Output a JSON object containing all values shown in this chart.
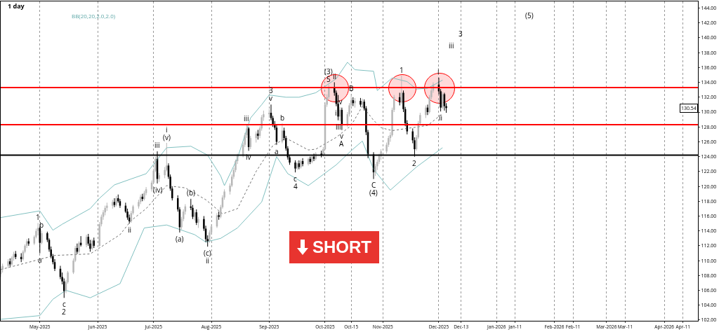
{
  "chart_data": {
    "type": "candlestick",
    "title": "1 day",
    "x": [
      "2025-04-10",
      "2025-04-11",
      "2025-04-14",
      "2025-04-15",
      "2025-04-16",
      "2025-04-17",
      "2025-04-18",
      "2025-04-21",
      "2025-04-22",
      "2025-04-23",
      "2025-04-24",
      "2025-04-25",
      "2025-04-28",
      "2025-04-29",
      "2025-04-30",
      "2025-05-01",
      "2025-05-02",
      "2025-05-05",
      "2025-05-06",
      "2025-05-07",
      "2025-05-08",
      "2025-05-09",
      "2025-05-12",
      "2025-05-13",
      "2025-05-14",
      "2025-05-15",
      "2025-05-16",
      "2025-05-19",
      "2025-05-20",
      "2025-05-21",
      "2025-05-22",
      "2025-05-23",
      "2025-05-26",
      "2025-05-27",
      "2025-05-28",
      "2025-05-29",
      "2025-05-30",
      "2025-06-02",
      "2025-06-03",
      "2025-06-04",
      "2025-06-05",
      "2025-06-06",
      "2025-06-09",
      "2025-06-10",
      "2025-06-11",
      "2025-06-12",
      "2025-06-13",
      "2025-06-16",
      "2025-06-17",
      "2025-06-18",
      "2025-06-19",
      "2025-06-20",
      "2025-06-23",
      "2025-06-24",
      "2025-06-25",
      "2025-06-26",
      "2025-06-27",
      "2025-06-30",
      "2025-07-01",
      "2025-07-02",
      "2025-07-03",
      "2025-07-04",
      "2025-07-07",
      "2025-07-08",
      "2025-07-09",
      "2025-07-10",
      "2025-07-11",
      "2025-07-14",
      "2025-07-15",
      "2025-07-16",
      "2025-07-17",
      "2025-07-18",
      "2025-07-21",
      "2025-07-22",
      "2025-07-23",
      "2025-07-24",
      "2025-07-25",
      "2025-07-28",
      "2025-07-29",
      "2025-07-30",
      "2025-07-31",
      "2025-08-01",
      "2025-08-04",
      "2025-08-05",
      "2025-08-06",
      "2025-08-07",
      "2025-08-08",
      "2025-08-11",
      "2025-08-12",
      "2025-08-13",
      "2025-08-14",
      "2025-08-15",
      "2025-08-18",
      "2025-08-19",
      "2025-08-20",
      "2025-08-21",
      "2025-08-22",
      "2025-08-25",
      "2025-08-26",
      "2025-08-27",
      "2025-08-28",
      "2025-08-29",
      "2025-09-01",
      "2025-09-02",
      "2025-09-03",
      "2025-09-04",
      "2025-09-05",
      "2025-09-08",
      "2025-09-09",
      "2025-09-10",
      "2025-09-11",
      "2025-09-12",
      "2025-09-15",
      "2025-09-16",
      "2025-09-17",
      "2025-09-18",
      "2025-09-19",
      "2025-09-22",
      "2025-09-23",
      "2025-09-24",
      "2025-09-25",
      "2025-09-26",
      "2025-09-29",
      "2025-09-30",
      "2025-10-01",
      "2025-10-02",
      "2025-10-03",
      "2025-10-06",
      "2025-10-07",
      "2025-10-08",
      "2025-10-09",
      "2025-10-10",
      "2025-10-13",
      "2025-10-14",
      "2025-10-15",
      "2025-10-16",
      "2025-10-17",
      "2025-10-20",
      "2025-10-21",
      "2025-10-22",
      "2025-10-23",
      "2025-10-24",
      "2025-10-27",
      "2025-10-28",
      "2025-10-29",
      "2025-10-30",
      "2025-10-31",
      "2025-11-03",
      "2025-11-04",
      "2025-11-05",
      "2025-11-06",
      "2025-11-07",
      "2025-11-10",
      "2025-11-11",
      "2025-11-12",
      "2025-11-13",
      "2025-11-14",
      "2025-11-17",
      "2025-11-18",
      "2025-11-19",
      "2025-11-20",
      "2025-11-21",
      "2025-11-24",
      "2025-11-25",
      "2025-11-26",
      "2025-11-27",
      "2025-11-28",
      "2025-12-01",
      "2025-12-02",
      "2025-12-03",
      "2025-12-04",
      "2025-12-05"
    ],
    "ohlc": [
      [
        108.2,
        109.2,
        107.8,
        108.8
      ],
      [
        108.8,
        109.6,
        108.4,
        109.3
      ],
      [
        109.3,
        110.2,
        109.0,
        109.9
      ],
      [
        109.9,
        110.3,
        109.2,
        109.5
      ],
      [
        109.5,
        110.6,
        109.3,
        110.4
      ],
      [
        110.4,
        111.2,
        110.0,
        110.9
      ],
      [
        110.9,
        111.3,
        110.2,
        110.5
      ],
      [
        110.5,
        111.0,
        109.8,
        110.2
      ],
      [
        110.2,
        111.4,
        110.0,
        111.2
      ],
      [
        111.2,
        112.2,
        111.0,
        112.0
      ],
      [
        112.0,
        112.9,
        111.7,
        112.6
      ],
      [
        112.6,
        113.0,
        112.0,
        112.3
      ],
      [
        112.3,
        113.4,
        112.1,
        113.2
      ],
      [
        113.2,
        114.3,
        113.0,
        114.0
      ],
      [
        114.0,
        115.0,
        113.4,
        114.4
      ],
      [
        114.4,
        114.6,
        111.0,
        112.4
      ],
      [
        112.4,
        114.0,
        112.2,
        113.7
      ],
      [
        113.7,
        113.9,
        112.5,
        112.8
      ],
      [
        112.8,
        113.0,
        111.2,
        111.5
      ],
      [
        111.5,
        111.9,
        110.3,
        110.6
      ],
      [
        110.6,
        110.9,
        109.5,
        109.8
      ],
      [
        109.8,
        110.2,
        108.6,
        108.9
      ],
      [
        108.9,
        109.3,
        107.5,
        107.8
      ],
      [
        107.8,
        108.4,
        106.8,
        107.2
      ],
      [
        107.2,
        107.6,
        105.0,
        105.9
      ],
      [
        105.9,
        107.4,
        105.6,
        107.1
      ],
      [
        107.1,
        108.6,
        106.9,
        108.4
      ],
      [
        108.4,
        110.3,
        108.2,
        110.0
      ],
      [
        110.0,
        112.0,
        109.8,
        111.7
      ],
      [
        111.7,
        112.3,
        110.9,
        111.2
      ],
      [
        111.2,
        112.6,
        111.0,
        112.4
      ],
      [
        112.4,
        113.3,
        111.9,
        112.1
      ],
      [
        112.1,
        113.5,
        111.8,
        113.2
      ],
      [
        113.2,
        113.6,
        112.0,
        112.3
      ],
      [
        112.3,
        112.8,
        111.2,
        111.6
      ],
      [
        111.6,
        112.9,
        111.4,
        112.7
      ],
      [
        112.7,
        113.1,
        111.7,
        112.0
      ],
      [
        112.0,
        115.2,
        111.9,
        114.9
      ],
      [
        114.9,
        116.2,
        114.6,
        115.9
      ],
      [
        115.9,
        116.8,
        115.5,
        116.5
      ],
      [
        116.5,
        117.4,
        116.1,
        117.1
      ],
      [
        117.1,
        117.8,
        116.7,
        117.4
      ],
      [
        117.4,
        118.2,
        117.0,
        117.9
      ],
      [
        117.9,
        118.4,
        117.2,
        117.5
      ],
      [
        117.5,
        118.7,
        117.3,
        118.4
      ],
      [
        118.4,
        118.9,
        117.8,
        118.0
      ],
      [
        118.0,
        118.3,
        117.1,
        117.4
      ],
      [
        117.4,
        117.8,
        116.4,
        116.6
      ],
      [
        116.6,
        117.0,
        115.5,
        115.8
      ],
      [
        115.8,
        116.2,
        115.0,
        115.3
      ],
      [
        115.3,
        116.7,
        115.1,
        116.4
      ],
      [
        116.4,
        117.5,
        116.2,
        117.3
      ],
      [
        117.3,
        118.2,
        117.0,
        117.9
      ],
      [
        117.9,
        118.9,
        117.6,
        118.6
      ],
      [
        118.6,
        119.0,
        118.0,
        118.3
      ],
      [
        118.3,
        119.4,
        118.1,
        119.1
      ],
      [
        119.1,
        119.9,
        118.8,
        119.6
      ],
      [
        119.6,
        120.8,
        119.3,
        120.5
      ],
      [
        120.5,
        122.4,
        120.3,
        122.1
      ],
      [
        122.1,
        124.0,
        121.9,
        123.7
      ],
      [
        123.7,
        124.7,
        120.4,
        121.0
      ],
      [
        121.0,
        121.8,
        120.6,
        121.5
      ],
      [
        121.5,
        122.6,
        121.1,
        122.2
      ],
      [
        122.2,
        125.8,
        122.0,
        122.8
      ],
      [
        122.8,
        123.1,
        121.0,
        121.3
      ],
      [
        121.3,
        121.6,
        119.4,
        119.7
      ],
      [
        119.7,
        120.0,
        118.1,
        118.4
      ],
      [
        118.4,
        118.8,
        116.6,
        116.9
      ],
      [
        116.9,
        117.2,
        113.8,
        114.5
      ],
      [
        114.5,
        115.9,
        114.2,
        115.6
      ],
      [
        115.6,
        116.9,
        115.3,
        116.6
      ],
      [
        116.6,
        117.6,
        116.2,
        117.3
      ],
      [
        117.3,
        118.3,
        116.8,
        117.1
      ],
      [
        117.1,
        117.5,
        115.6,
        115.9
      ],
      [
        115.9,
        116.8,
        115.4,
        116.5
      ],
      [
        116.5,
        116.9,
        114.8,
        115.1
      ],
      [
        115.1,
        115.9,
        114.4,
        115.6
      ],
      [
        115.6,
        116.0,
        114.0,
        114.3
      ],
      [
        114.3,
        114.7,
        112.5,
        112.9
      ],
      [
        112.9,
        113.4,
        111.9,
        112.6
      ],
      [
        112.6,
        114.1,
        112.4,
        113.8
      ],
      [
        113.8,
        114.9,
        113.5,
        114.6
      ],
      [
        114.6,
        116.4,
        114.4,
        116.1
      ],
      [
        116.1,
        116.6,
        115.5,
        115.9
      ],
      [
        115.9,
        117.5,
        115.7,
        117.2
      ],
      [
        117.2,
        118.8,
        117.0,
        118.5
      ],
      [
        118.5,
        119.6,
        118.2,
        119.3
      ],
      [
        119.3,
        120.4,
        118.9,
        120.1
      ],
      [
        120.1,
        121.6,
        119.9,
        121.3
      ],
      [
        121.3,
        122.5,
        121.0,
        122.2
      ],
      [
        122.2,
        123.6,
        121.9,
        123.4
      ],
      [
        123.4,
        124.4,
        123.0,
        124.1
      ],
      [
        124.1,
        125.9,
        123.9,
        125.6
      ],
      [
        125.6,
        127.2,
        125.3,
        126.9
      ],
      [
        126.9,
        128.3,
        126.5,
        127.8
      ],
      [
        127.8,
        128.0,
        124.8,
        125.3
      ],
      [
        125.3,
        126.8,
        125.0,
        126.5
      ],
      [
        126.5,
        127.4,
        125.9,
        127.1
      ],
      [
        127.1,
        127.6,
        126.3,
        126.8
      ],
      [
        126.8,
        128.1,
        126.5,
        127.8
      ],
      [
        127.8,
        129.6,
        127.5,
        129.3
      ],
      [
        129.3,
        130.2,
        128.8,
        129.7
      ],
      [
        129.7,
        130.4,
        129.2,
        129.9
      ],
      [
        129.9,
        131.0,
        128.9,
        129.2
      ],
      [
        129.2,
        129.5,
        128.0,
        128.3
      ],
      [
        128.3,
        128.8,
        127.6,
        127.9
      ],
      [
        127.9,
        128.2,
        125.6,
        126.0
      ],
      [
        126.0,
        128.4,
        125.8,
        127.5
      ],
      [
        127.5,
        127.9,
        126.2,
        126.5
      ],
      [
        126.5,
        126.8,
        124.8,
        125.1
      ],
      [
        125.1,
        125.4,
        123.6,
        123.9
      ],
      [
        123.9,
        124.2,
        122.9,
        123.2
      ],
      [
        123.2,
        123.5,
        121.9,
        122.4
      ],
      [
        122.4,
        123.4,
        122.2,
        123.1
      ],
      [
        123.1,
        123.5,
        122.3,
        122.6
      ],
      [
        122.6,
        123.6,
        122.4,
        123.4
      ],
      [
        123.4,
        123.8,
        122.7,
        123.0
      ],
      [
        123.0,
        123.9,
        122.8,
        123.7
      ],
      [
        123.7,
        124.0,
        123.0,
        123.3
      ],
      [
        123.3,
        124.2,
        123.1,
        124.0
      ],
      [
        124.0,
        124.4,
        123.4,
        123.7
      ],
      [
        123.7,
        124.6,
        123.5,
        124.4
      ],
      [
        124.4,
        124.8,
        123.9,
        124.2
      ],
      [
        124.2,
        125.3,
        124.0,
        125.0
      ],
      [
        125.0,
        131.3,
        124.9,
        131.0
      ],
      [
        131.0,
        132.4,
        130.7,
        132.0
      ],
      [
        132.0,
        133.6,
        131.7,
        133.2
      ],
      [
        133.2,
        134.0,
        132.2,
        132.6
      ],
      [
        132.6,
        132.9,
        130.8,
        131.1
      ],
      [
        131.1,
        132.3,
        128.9,
        129.4
      ],
      [
        129.4,
        130.6,
        128.8,
        130.3
      ],
      [
        130.3,
        130.6,
        127.6,
        128.2
      ],
      [
        128.2,
        130.0,
        128.0,
        129.7
      ],
      [
        129.7,
        131.2,
        129.4,
        130.9
      ],
      [
        130.9,
        132.4,
        130.6,
        131.6
      ],
      [
        131.6,
        132.0,
        130.8,
        131.2
      ],
      [
        131.2,
        131.9,
        130.6,
        131.5
      ],
      [
        131.5,
        131.9,
        130.7,
        131.0
      ],
      [
        131.0,
        131.8,
        130.6,
        131.4
      ],
      [
        131.4,
        131.7,
        130.2,
        130.5
      ],
      [
        130.5,
        130.8,
        126.9,
        127.3
      ],
      [
        127.3,
        127.6,
        123.8,
        124.3
      ],
      [
        124.3,
        124.6,
        121.0,
        121.9
      ],
      [
        121.9,
        123.0,
        121.4,
        122.7
      ],
      [
        122.7,
        123.6,
        122.2,
        123.3
      ],
      [
        123.3,
        124.4,
        123.0,
        124.1
      ],
      [
        124.1,
        125.0,
        123.6,
        124.7
      ],
      [
        124.7,
        125.9,
        124.4,
        125.6
      ],
      [
        125.6,
        126.8,
        125.3,
        126.5
      ],
      [
        126.5,
        127.3,
        126.0,
        126.9
      ],
      [
        126.9,
        130.6,
        126.7,
        130.3
      ],
      [
        130.3,
        132.3,
        130.0,
        132.0
      ],
      [
        132.0,
        132.6,
        130.9,
        131.3
      ],
      [
        131.3,
        134.8,
        131.1,
        132.6
      ],
      [
        132.6,
        132.9,
        130.0,
        130.4
      ],
      [
        130.4,
        130.7,
        128.1,
        128.5
      ],
      [
        128.5,
        128.9,
        127.0,
        127.4
      ],
      [
        127.4,
        127.8,
        125.8,
        126.2
      ],
      [
        126.2,
        126.6,
        124.0,
        125.0
      ],
      [
        125.0,
        126.9,
        124.8,
        126.6
      ],
      [
        126.6,
        128.8,
        126.4,
        128.5
      ],
      [
        128.5,
        129.9,
        128.3,
        129.6
      ],
      [
        129.6,
        130.9,
        129.2,
        130.6
      ],
      [
        130.6,
        131.0,
        129.6,
        130.0
      ],
      [
        130.0,
        132.3,
        129.8,
        132.0
      ],
      [
        132.0,
        133.2,
        131.7,
        132.9
      ],
      [
        132.9,
        134.0,
        132.6,
        133.7
      ],
      [
        133.7,
        134.6,
        132.4,
        132.8
      ],
      [
        132.8,
        133.1,
        130.1,
        130.6
      ],
      [
        130.6,
        132.7,
        130.4,
        132.4
      ],
      [
        132.4,
        132.6,
        130.2,
        130.8
      ],
      [
        130.8,
        131.2,
        129.9,
        130.54
      ]
    ],
    "colors": [
      "#b8b8b8",
      "#b8b8b8",
      "#b8b8b8",
      "#000000",
      "#b8b8b8",
      "#b8b8b8",
      "#000000",
      "#000000",
      "#b8b8b8",
      "#b8b8b8",
      "#b8b8b8",
      "#000000",
      "#b8b8b8",
      "#b8b8b8",
      "#b8b8b8",
      "#000000",
      "#b8b8b8",
      "#000000",
      "#000000",
      "#000000",
      "#000000",
      "#000000",
      "#000000",
      "#000000",
      "#000000",
      "#b8b8b8",
      "#b8b8b8",
      "#b8b8b8",
      "#b8b8b8",
      "#000000",
      "#b8b8b8",
      "#000000",
      "#b8b8b8",
      "#000000",
      "#000000",
      "#b8b8b8",
      "#000000",
      "#b8b8b8",
      "#b8b8b8",
      "#b8b8b8",
      "#b8b8b8",
      "#b8b8b8",
      "#b8b8b8",
      "#000000",
      "#b8b8b8",
      "#000000",
      "#000000",
      "#000000",
      "#000000",
      "#000000",
      "#b8b8b8",
      "#b8b8b8",
      "#b8b8b8",
      "#b8b8b8",
      "#000000",
      "#b8b8b8",
      "#b8b8b8",
      "#b8b8b8",
      "#b8b8b8",
      "#b8b8b8",
      "#000000",
      "#b8b8b8",
      "#b8b8b8",
      "#b8b8b8",
      "#000000",
      "#000000",
      "#000000",
      "#000000",
      "#000000",
      "#b8b8b8",
      "#b8b8b8",
      "#b8b8b8",
      "#000000",
      "#000000",
      "#b8b8b8",
      "#000000",
      "#b8b8b8",
      "#000000",
      "#000000",
      "#000000",
      "#b8b8b8",
      "#b8b8b8",
      "#b8b8b8",
      "#000000",
      "#b8b8b8",
      "#b8b8b8",
      "#b8b8b8",
      "#b8b8b8",
      "#b8b8b8",
      "#b8b8b8",
      "#b8b8b8",
      "#b8b8b8",
      "#b8b8b8",
      "#b8b8b8",
      "#b8b8b8",
      "#000000",
      "#b8b8b8",
      "#b8b8b8",
      "#000000",
      "#b8b8b8",
      "#b8b8b8",
      "#b8b8b8",
      "#b8b8b8",
      "#000000",
      "#000000",
      "#000000",
      "#000000",
      "#b8b8b8",
      "#000000",
      "#000000",
      "#000000",
      "#000000",
      "#000000",
      "#b8b8b8",
      "#000000",
      "#b8b8b8",
      "#000000",
      "#b8b8b8",
      "#000000",
      "#b8b8b8",
      "#000000",
      "#b8b8b8",
      "#000000",
      "#b8b8b8",
      "#b8b8b8",
      "#b8b8b8",
      "#b8b8b8",
      "#000000",
      "#000000",
      "#000000",
      "#b8b8b8",
      "#000000",
      "#b8b8b8",
      "#b8b8b8",
      "#b8b8b8",
      "#000000",
      "#b8b8b8",
      "#000000",
      "#b8b8b8",
      "#000000",
      "#000000",
      "#000000",
      "#000000",
      "#b8b8b8",
      "#b8b8b8",
      "#b8b8b8",
      "#b8b8b8",
      "#b8b8b8",
      "#b8b8b8",
      "#b8b8b8",
      "#b8b8b8",
      "#b8b8b8",
      "#000000",
      "#b8b8b8",
      "#000000",
      "#000000",
      "#000000",
      "#000000",
      "#000000",
      "#b8b8b8",
      "#b8b8b8",
      "#b8b8b8",
      "#b8b8b8",
      "#000000",
      "#b8b8b8",
      "#b8b8b8",
      "#b8b8b8",
      "#000000",
      "#000000",
      "#b8b8b8",
      "#000000",
      "#000000"
    ],
    "series": [
      {
        "type": "line",
        "color": "#80c0c0",
        "x": [
          "2025-04-10",
          "2025-05-01",
          "2025-05-08",
          "2025-05-13",
          "2025-05-28",
          "2025-06-02",
          "2025-06-10",
          "2025-06-19",
          "2025-06-27",
          "2025-07-08",
          "2025-07-21",
          "2025-07-30",
          "2025-08-06",
          "2025-08-08",
          "2025-08-15",
          "2025-08-22",
          "2025-08-28",
          "2025-09-01",
          "2025-09-10",
          "2025-09-17",
          "2025-09-26",
          "2025-10-07",
          "2025-10-13",
          "2025-10-17",
          "2025-10-27",
          "2025-10-29",
          "2025-11-06",
          "2025-11-14",
          "2025-11-19",
          "2025-11-25",
          "2025-12-03"
        ],
        "values": [
          115.8,
          116.7,
          114.1,
          114.9,
          117,
          118.4,
          120.2,
          121,
          121.7,
          125.2,
          125.4,
          124.2,
          121.4,
          120.1,
          123.8,
          129.2,
          131,
          132.3,
          132,
          132,
          132.6,
          134.5,
          136.7,
          135.7,
          135.5,
          132.9,
          134.6,
          134.1,
          133.1,
          133.2,
          134.3
        ]
      },
      {
        "type": "line",
        "color": "#707070",
        "line_style": "dotted",
        "x": [
          "2025-04-10",
          "2025-05-09",
          "2025-05-28",
          "2025-06-13",
          "2025-06-19",
          "2025-06-27",
          "2025-07-08",
          "2025-07-18",
          "2025-07-29",
          "2025-08-07",
          "2025-08-15",
          "2025-08-25",
          "2025-09-03",
          "2025-09-10",
          "2025-09-22",
          "2025-09-26",
          "2025-10-07",
          "2025-10-15",
          "2025-10-21",
          "2025-10-27",
          "2025-10-31",
          "2025-11-06",
          "2025-11-14",
          "2025-11-25",
          "2025-12-03"
        ],
        "values": [
          108.8,
          110.7,
          110.9,
          113.5,
          115.4,
          117,
          120.1,
          119.8,
          118.2,
          116.3,
          117,
          122,
          125.5,
          126.5,
          124.9,
          125,
          126.6,
          128.2,
          130.8,
          128.9,
          127.9,
          127.5,
          127.8,
          128.2,
          129.8
        ]
      },
      {
        "type": "line",
        "color": "#80c0c0",
        "x": [
          "2025-04-10",
          "2025-05-01",
          "2025-05-08",
          "2025-05-15",
          "2025-05-28",
          "2025-06-13",
          "2025-06-26",
          "2025-07-08",
          "2025-07-23",
          "2025-07-29",
          "2025-08-06",
          "2025-08-15",
          "2025-08-28",
          "2025-09-05",
          "2025-09-11",
          "2025-09-22",
          "2025-10-07",
          "2025-10-15",
          "2025-10-21",
          "2025-10-27",
          "2025-11-05",
          "2025-11-19",
          "2025-12-03"
        ],
        "values": [
          102.1,
          102.6,
          104.8,
          106,
          105,
          106.9,
          114.4,
          114.8,
          113.5,
          112.5,
          113,
          114.4,
          117.9,
          124,
          121.7,
          120.1,
          122.9,
          124.8,
          126.1,
          122.3,
          119.5,
          122.6,
          125.2
        ]
      }
    ],
    "ref_lines": [
      {
        "axis": "y",
        "value": 133.3,
        "color": "#ff0000"
      },
      {
        "axis": "y",
        "value": 128.3,
        "color": "#ff0000"
      },
      {
        "axis": "y",
        "value": 124.2,
        "color": "#000000"
      }
    ],
    "annotations": [
      "BB(20,20,2.0,2.0)",
      "SHORT",
      "iii",
      "3",
      "(5)",
      {
        "text": "130.54",
        "y": 130.54
      },
      {
        "text": "1",
        "x": "2025-04-30",
        "y": 115.0
      },
      {
        "text": "b",
        "x": "2025-05-02",
        "y": 114.0
      },
      {
        "text": "a",
        "x": "2025-05-01",
        "y": 111.0
      },
      {
        "text": "c",
        "x": "2025-05-14",
        "y": 105.0
      },
      {
        "text": "2",
        "x": "2025-05-14",
        "y": 105.0
      },
      {
        "text": "ii",
        "x": "2025-06-18",
        "y": 115.0
      },
      {
        "text": "iii",
        "x": "2025-07-03",
        "y": 124.7
      },
      {
        "text": "(iv)",
        "x": "2025-07-03",
        "y": 120.4
      },
      {
        "text": "(v)",
        "x": "2025-07-08",
        "y": 125.8
      },
      {
        "text": "i",
        "x": "2025-07-08",
        "y": 125.8
      },
      {
        "text": "(a)",
        "x": "2025-07-15",
        "y": 113.8
      },
      {
        "text": "(b)",
        "x": "2025-07-21",
        "y": 118.3
      },
      {
        "text": "(c)",
        "x": "2025-07-30",
        "y": 111.9
      },
      {
        "text": "ii",
        "x": "2025-07-30",
        "y": 111.9
      },
      {
        "text": "iii",
        "x": "2025-08-20",
        "y": 128.3
      },
      {
        "text": "iv",
        "x": "2025-08-21",
        "y": 124.8
      },
      {
        "text": "v",
        "x": "2025-09-02",
        "y": 131.0
      },
      {
        "text": "3",
        "x": "2025-09-02",
        "y": 131.0
      },
      {
        "text": "a",
        "x": "2025-09-05",
        "y": 125.6
      },
      {
        "text": "b",
        "x": "2025-09-08",
        "y": 128.4
      },
      {
        "text": "c",
        "x": "2025-09-15",
        "y": 121.9
      },
      {
        "text": "4",
        "x": "2025-09-15",
        "y": 121.9
      },
      {
        "text": "5",
        "x": "2025-10-03",
        "y": 133.6
      },
      {
        "text": "(3)",
        "x": "2025-10-03",
        "y": 133.6
      },
      {
        "text": "ii",
        "x": "2025-10-06",
        "y": 134.0
      },
      {
        "text": "i",
        "x": "2025-10-07",
        "y": 130.8
      },
      {
        "text": "iii",
        "x": "2025-10-08",
        "y": 128.9
      },
      {
        "text": "iv",
        "x": "2025-10-09",
        "y": 130.6
      },
      {
        "text": "v",
        "x": "2025-10-10",
        "y": 127.6
      },
      {
        "text": "A",
        "x": "2025-10-10",
        "y": 127.6
      },
      {
        "text": "B",
        "x": "2025-10-15",
        "y": 132.4
      },
      {
        "text": "C",
        "x": "2025-10-27",
        "y": 121.0
      },
      {
        "text": "(4)",
        "x": "2025-10-27",
        "y": 121.0
      },
      {
        "text": "1",
        "x": "2025-11-11",
        "y": 134.8
      },
      {
        "text": "2",
        "x": "2025-11-18",
        "y": 124.0
      },
      {
        "text": "i",
        "x": "2025-12-01",
        "y": 134.6
      },
      {
        "text": "ii",
        "x": "2025-12-02",
        "y": 130.1
      }
    ],
    "xlim": [
      "2025-04-10",
      "2026-04-19"
    ],
    "xticks": [
      {
        "value": "2025-05-01",
        "label": "May-2025"
      },
      {
        "value": "2025-06-01",
        "label": "Jun-2025"
      },
      {
        "value": "2025-07-01",
        "label": "Jul-2025"
      },
      {
        "value": "2025-08-01",
        "label": "Aug-2025"
      },
      {
        "value": "2025-09-01",
        "label": "Sep-2025"
      },
      {
        "value": "2025-10-01",
        "label": "Oct-2025"
      },
      {
        "value": "2025-10-15",
        "label": "Oct-15"
      },
      {
        "value": "2025-11-01",
        "label": "Nov-2025"
      },
      {
        "value": "2025-12-01",
        "label": "Dec-2025"
      },
      {
        "value": "2025-12-13",
        "label": "Dec-13"
      },
      {
        "value": "2026-01-01",
        "label": "Jan-2026"
      },
      {
        "value": "2026-01-11",
        "label": "Jan-11"
      },
      {
        "value": "2026-02-01",
        "label": "Feb-2026"
      },
      {
        "value": "2026-02-11",
        "label": "Feb-11"
      },
      {
        "value": "2026-03-01",
        "label": "Mar-2026"
      },
      {
        "value": "2026-03-11",
        "label": "Mar-11"
      },
      {
        "value": "2026-04-01",
        "label": "Apr-2026"
      },
      {
        "value": "2026-04-11",
        "label": "Apr-11"
      }
    ],
    "ylim": [
      101.9,
      144.9
    ],
    "yticks": [
      {
        "value": 102,
        "label": "102.00"
      },
      {
        "value": 104,
        "label": "104.00"
      },
      {
        "value": 106,
        "label": "106.00"
      },
      {
        "value": 108,
        "label": "108.00"
      },
      {
        "value": 110,
        "label": "110.00"
      },
      {
        "value": 112,
        "label": "112.00"
      },
      {
        "value": 114,
        "label": "114.00"
      },
      {
        "value": 116,
        "label": "116.00"
      },
      {
        "value": 118,
        "label": "118.00"
      },
      {
        "value": 120,
        "label": "120.00"
      },
      {
        "value": 122,
        "label": "122.00"
      },
      {
        "value": 124,
        "label": "124.00"
      },
      {
        "value": 126,
        "label": "126.00"
      },
      {
        "value": 128,
        "label": "128.00"
      },
      {
        "value": 130,
        "label": "130.00"
      },
      {
        "value": 132,
        "label": "132.00"
      },
      {
        "value": 134,
        "label": "134.00"
      },
      {
        "value": 136,
        "label": "136.00"
      },
      {
        "value": 138,
        "label": "138.00"
      },
      {
        "value": 140,
        "label": "140.00"
      },
      {
        "value": 142,
        "label": "142.00"
      },
      {
        "value": 144,
        "label": "144.00"
      }
    ],
    "grid": "x"
  }
}
